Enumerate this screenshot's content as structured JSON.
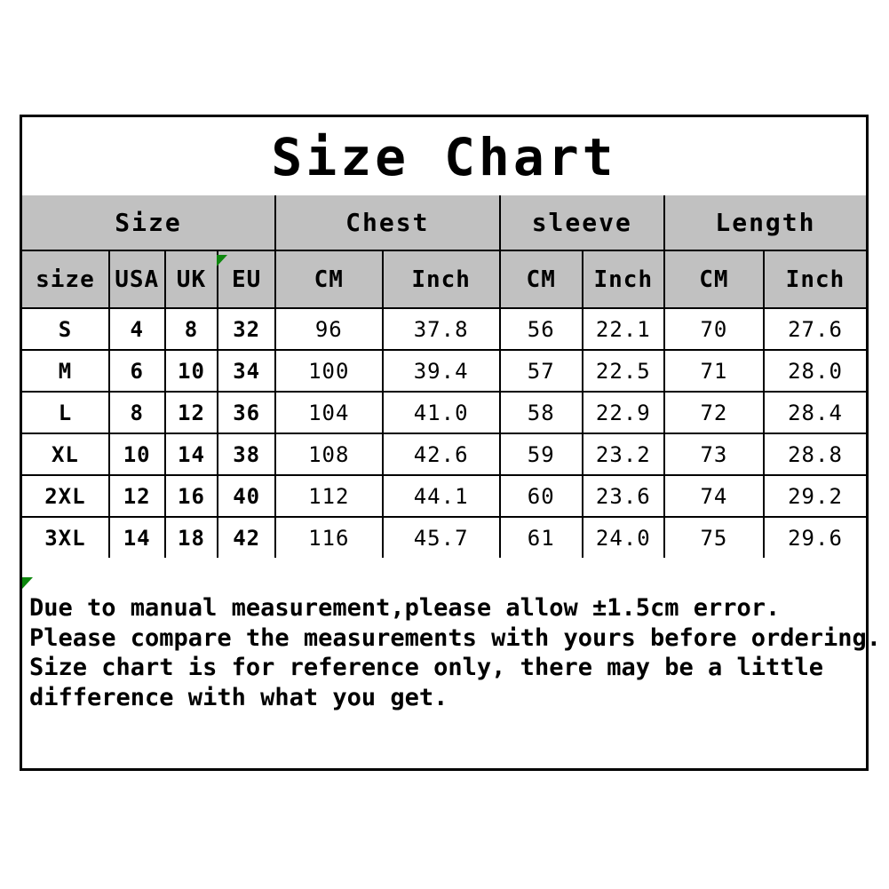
{
  "title": "Size Chart",
  "table": {
    "groups": [
      {
        "label": "Size",
        "span": 4
      },
      {
        "label": "Chest",
        "span": 2
      },
      {
        "label": "sleeve",
        "span": 2
      },
      {
        "label": "Length",
        "span": 2
      }
    ],
    "subheaders": [
      "size",
      "USA",
      "UK",
      "EU",
      "CM",
      "Inch",
      "CM",
      "Inch",
      "CM",
      "Inch"
    ],
    "rows": [
      [
        "S",
        "4",
        "8",
        "32",
        "96",
        "37.8",
        "56",
        "22.1",
        "70",
        "27.6"
      ],
      [
        "M",
        "6",
        "10",
        "34",
        "100",
        "39.4",
        "57",
        "22.5",
        "71",
        "28.0"
      ],
      [
        "L",
        "8",
        "12",
        "36",
        "104",
        "41.0",
        "58",
        "22.9",
        "72",
        "28.4"
      ],
      [
        "XL",
        "10",
        "14",
        "38",
        "108",
        "42.6",
        "59",
        "23.2",
        "73",
        "28.8"
      ],
      [
        "2XL",
        "12",
        "16",
        "40",
        "112",
        "44.1",
        "60",
        "23.6",
        "74",
        "29.2"
      ],
      [
        "3XL",
        "14",
        "18",
        "42",
        "116",
        "45.7",
        "61",
        "24.0",
        "75",
        "29.6"
      ]
    ]
  },
  "footer": {
    "lines": [
      "Due to manual measurement,please allow ±1.5cm error.",
      "Please compare the measurements with yours before ordering.",
      "Size chart is for reference only, there may be a little",
      "difference with what you get."
    ]
  },
  "colors": {
    "header_bg": "#c1c1c1",
    "border": "#000000",
    "flag_green": "#0d870d",
    "text": "#000000",
    "background": "#ffffff"
  },
  "chart_data": {
    "type": "table",
    "title": "Size Chart",
    "column_groups": [
      "Size",
      "Size",
      "Size",
      "Size",
      "Chest",
      "Chest",
      "sleeve",
      "sleeve",
      "Length",
      "Length"
    ],
    "columns": [
      "size",
      "USA",
      "UK",
      "EU",
      "Chest CM",
      "Chest Inch",
      "sleeve CM",
      "sleeve Inch",
      "Length CM",
      "Length Inch"
    ],
    "rows": [
      [
        "S",
        4,
        8,
        32,
        96,
        37.8,
        56,
        22.1,
        70,
        27.6
      ],
      [
        "M",
        6,
        10,
        34,
        100,
        39.4,
        57,
        22.5,
        71,
        28.0
      ],
      [
        "L",
        8,
        12,
        36,
        104,
        41.0,
        58,
        22.9,
        72,
        28.4
      ],
      [
        "XL",
        10,
        14,
        38,
        108,
        42.6,
        59,
        23.2,
        73,
        28.8
      ],
      [
        "2XL",
        12,
        16,
        40,
        112,
        44.1,
        60,
        23.6,
        74,
        29.2
      ],
      [
        "3XL",
        14,
        18,
        42,
        116,
        45.7,
        61,
        24.0,
        75,
        29.6
      ]
    ],
    "notes": [
      "Due to manual measurement,please allow ±1.5cm error.",
      "Please compare the measurements with yours before ordering.",
      "Size chart is for reference only, there may be a little",
      "difference with what you get."
    ]
  }
}
